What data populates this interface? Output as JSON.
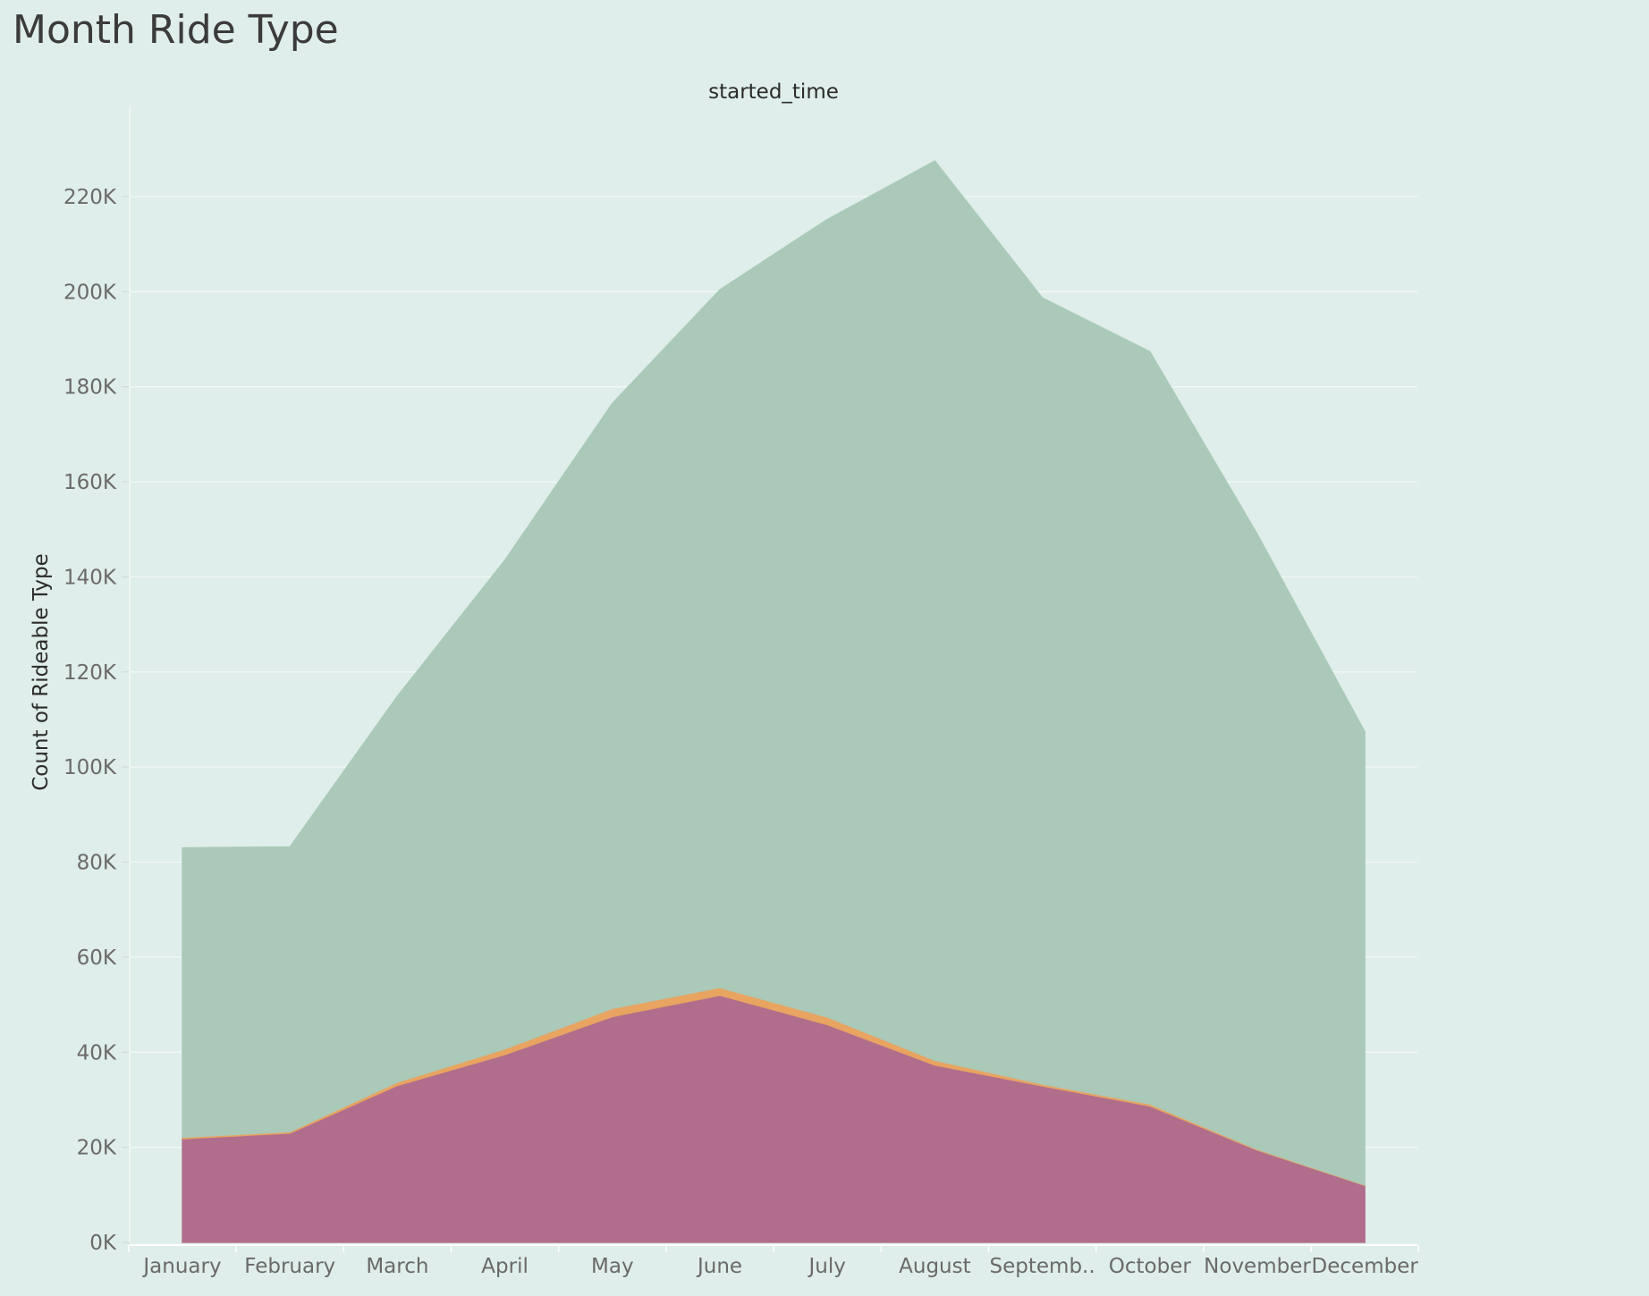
{
  "title": "Month Ride Type",
  "chart_data": {
    "type": "area",
    "stacked": true,
    "title": "Month Ride Type",
    "column_header": "started_time",
    "ylabel": "Count of Rideable Type",
    "xlabel": "",
    "ylim": [
      0,
      240000
    ],
    "yticks": [
      0,
      20000,
      40000,
      60000,
      80000,
      100000,
      120000,
      140000,
      160000,
      180000,
      200000,
      220000
    ],
    "ytick_labels": [
      "0K",
      "20K",
      "40K",
      "60K",
      "80K",
      "100K",
      "120K",
      "140K",
      "160K",
      "180K",
      "200K",
      "220K"
    ],
    "categories": [
      "January",
      "February",
      "March",
      "April",
      "May",
      "June",
      "July",
      "August",
      "Septemb..",
      "October",
      "November",
      "December"
    ],
    "grid": true,
    "legend": "none",
    "series": [
      {
        "color": "#b06d8c",
        "values": [
          21800,
          23000,
          33000,
          39500,
          47500,
          52000,
          45800,
          37300,
          32900,
          28700,
          19400,
          12000
        ]
      },
      {
        "color": "#e8a460",
        "values": [
          300,
          300,
          700,
          1200,
          1700,
          1600,
          1600,
          1000,
          400,
          400,
          200,
          100
        ]
      },
      {
        "color": "#aac9b8",
        "values": [
          60900,
          59900,
          81200,
          102800,
          127300,
          146800,
          167800,
          189200,
          165400,
          158300,
          129400,
          95300
        ]
      }
    ]
  }
}
